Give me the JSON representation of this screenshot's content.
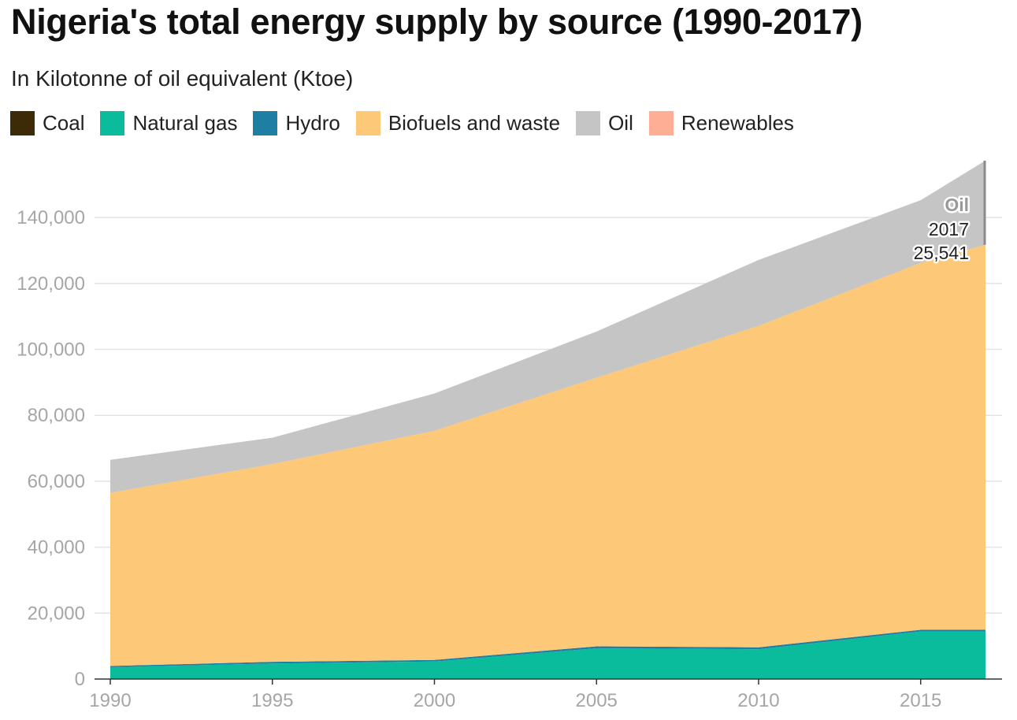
{
  "title": "Nigeria's total energy supply by source (1990-2017)",
  "subtitle": "In Kilotonne of oil equivalent (Ktoe)",
  "legend": [
    {
      "label": "Coal",
      "color": "#3d2b08"
    },
    {
      "label": "Natural gas",
      "color": "#0bbc9c"
    },
    {
      "label": "Hydro",
      "color": "#1f7fa3"
    },
    {
      "label": "Biofuels and waste",
      "color": "#fdc877"
    },
    {
      "label": "Oil",
      "color": "#c5c5c5"
    },
    {
      "label": "Renewables",
      "color": "#fdae94"
    }
  ],
  "annotation": {
    "series": "Oil",
    "year": "2017",
    "value": "25,541"
  },
  "chart_data": {
    "type": "area",
    "stacked": true,
    "x": [
      1990,
      1995,
      2000,
      2005,
      2010,
      2015,
      2017
    ],
    "series": [
      {
        "name": "Coal",
        "color": "#3d2b08",
        "values": [
          80,
          20,
          10,
          10,
          30,
          40,
          40
        ]
      },
      {
        "name": "Natural gas",
        "color": "#0bbc9c",
        "values": [
          3500,
          4700,
          5300,
          9300,
          9000,
          14400,
          14400
        ]
      },
      {
        "name": "Hydro",
        "color": "#1f7fa3",
        "values": [
          400,
          500,
          500,
          600,
          600,
          500,
          500
        ]
      },
      {
        "name": "Biofuels and waste",
        "color": "#fdc877",
        "values": [
          52500,
          60000,
          69500,
          81500,
          97500,
          111300,
          116800
        ]
      },
      {
        "name": "Oil",
        "color": "#c5c5c5",
        "values": [
          10000,
          8000,
          11300,
          14000,
          20000,
          19000,
          25541
        ]
      },
      {
        "name": "Renewables",
        "color": "#fdae94",
        "values": [
          0,
          0,
          0,
          0,
          0,
          10,
          10
        ]
      }
    ],
    "xlim": [
      1990,
      2017
    ],
    "ylim": [
      0,
      157000
    ],
    "y_ticks": [
      0,
      20000,
      40000,
      60000,
      80000,
      100000,
      120000,
      140000
    ],
    "y_tick_labels": [
      "0",
      "20,000",
      "40,000",
      "60,000",
      "80,000",
      "100,000",
      "120,000",
      "140,000"
    ],
    "x_ticks": [
      1990,
      1995,
      2000,
      2005,
      2010,
      2015
    ],
    "x_tick_labels": [
      "1990",
      "1995",
      "2000",
      "2005",
      "2010",
      "2015"
    ],
    "grid": true,
    "legend_position": "top-left"
  }
}
